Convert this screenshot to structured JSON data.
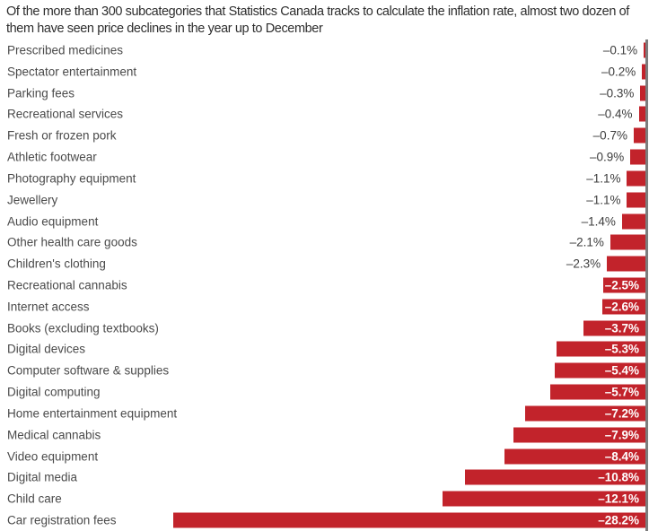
{
  "chart": {
    "title": "Of the more than 300 subcategories that Statistics Canada tracks to calculate the inflation rate, almost two dozen of them have seen price declines in the year up to December"
  },
  "chart_data": {
    "type": "bar",
    "orientation": "horizontal",
    "title": "Of the more than 300 subcategories that Statistics Canada tracks to calculate the inflation rate, almost two dozen of them have seen price declines in the year up to December",
    "unit": "%",
    "xlim": [
      -30,
      0
    ],
    "axis_side": "right",
    "grid": false,
    "legend": false,
    "bar_color": "#c2232b",
    "axis_line_color": "#7c7c7c",
    "label_color": "#4a4a4a",
    "value_label_outside_color": "#3d3d3d",
    "value_label_inside_color": "#ffffff",
    "rows": [
      {
        "category": "Prescribed medicines",
        "value": -0.1,
        "label": "–0.1%"
      },
      {
        "category": "Spectator entertainment",
        "value": -0.2,
        "label": "–0.2%"
      },
      {
        "category": "Parking fees",
        "value": -0.3,
        "label": "–0.3%"
      },
      {
        "category": "Recreational services",
        "value": -0.4,
        "label": "–0.4%"
      },
      {
        "category": "Fresh or frozen pork",
        "value": -0.7,
        "label": "–0.7%"
      },
      {
        "category": "Athletic footwear",
        "value": -0.9,
        "label": "–0.9%"
      },
      {
        "category": "Photography equipment",
        "value": -1.1,
        "label": "–1.1%"
      },
      {
        "category": "Jewellery",
        "value": -1.1,
        "label": "–1.1%"
      },
      {
        "category": "Audio equipment",
        "value": -1.4,
        "label": "–1.4%"
      },
      {
        "category": "Other health care goods",
        "value": -2.1,
        "label": "–2.1%"
      },
      {
        "category": "Children's clothing",
        "value": -2.3,
        "label": "–2.3%"
      },
      {
        "category": "Recreational cannabis",
        "value": -2.5,
        "label": "–2.5%"
      },
      {
        "category": "Internet access",
        "value": -2.6,
        "label": "–2.6%"
      },
      {
        "category": "Books (excluding textbooks)",
        "value": -3.7,
        "label": "–3.7%"
      },
      {
        "category": "Digital devices",
        "value": -5.3,
        "label": "–5.3%"
      },
      {
        "category": "Computer software & supplies",
        "value": -5.4,
        "label": "–5.4%"
      },
      {
        "category": "Digital computing",
        "value": -5.7,
        "label": "–5.7%"
      },
      {
        "category": "Home entertainment equipment",
        "value": -7.2,
        "label": "–7.2%"
      },
      {
        "category": "Medical cannabis",
        "value": -7.9,
        "label": "–7.9%"
      },
      {
        "category": "Video equipment",
        "value": -8.4,
        "label": "–8.4%"
      },
      {
        "category": "Digital media",
        "value": -10.8,
        "label": "–10.8%"
      },
      {
        "category": "Child care",
        "value": -12.1,
        "label": "–12.1%"
      },
      {
        "category": "Car registration fees",
        "value": -28.2,
        "label": "–28.2%"
      }
    ]
  }
}
